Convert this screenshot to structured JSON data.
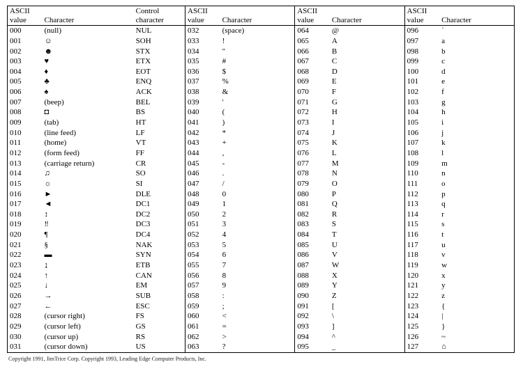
{
  "colors": {
    "background": "#ffffff",
    "text": "#000000",
    "border": "#000000"
  },
  "typography": {
    "body_font": "Times New Roman",
    "header_fontsize_pt": 8.5,
    "cell_fontsize_pt": 8.5,
    "copyright_fontsize_pt": 6
  },
  "headers": {
    "ascii_value_l1": "ASCII",
    "ascii_value_l2": "value",
    "character": "Character",
    "control_l1": "Control",
    "control_l2": "character"
  },
  "group1": [
    {
      "v": "000",
      "ch": "(null)",
      "cc": "NUL"
    },
    {
      "v": "001",
      "ch": "☺",
      "cc": "SOH"
    },
    {
      "v": "002",
      "ch": "☻",
      "cc": "STX"
    },
    {
      "v": "003",
      "ch": "♥",
      "cc": "ETX"
    },
    {
      "v": "004",
      "ch": "♦",
      "cc": "EOT"
    },
    {
      "v": "005",
      "ch": "♣",
      "cc": "ENQ"
    },
    {
      "v": "006",
      "ch": "♠",
      "cc": "ACK"
    },
    {
      "v": "007",
      "ch": "(beep)",
      "cc": "BEL"
    },
    {
      "v": "008",
      "ch": "◘",
      "cc": "BS"
    },
    {
      "v": "009",
      "ch": "(tab)",
      "cc": "HT"
    },
    {
      "v": "010",
      "ch": "(line feed)",
      "cc": "LF"
    },
    {
      "v": "011",
      "ch": "(home)",
      "cc": "VT"
    },
    {
      "v": "012",
      "ch": "(form feed)",
      "cc": "FF"
    },
    {
      "v": "013",
      "ch": "(carriage return)",
      "cc": "CR"
    },
    {
      "v": "014",
      "ch": "♫",
      "cc": "SO"
    },
    {
      "v": "015",
      "ch": "☼",
      "cc": "SI"
    },
    {
      "v": "016",
      "ch": "►",
      "cc": "DLE"
    },
    {
      "v": "017",
      "ch": "◄",
      "cc": "DC1"
    },
    {
      "v": "018",
      "ch": "↕",
      "cc": "DC2"
    },
    {
      "v": "019",
      "ch": "‼",
      "cc": "DC3"
    },
    {
      "v": "020",
      "ch": "¶",
      "cc": "DC4"
    },
    {
      "v": "021",
      "ch": "§",
      "cc": "NAK"
    },
    {
      "v": "022",
      "ch": "▬",
      "cc": "SYN"
    },
    {
      "v": "023",
      "ch": "↨",
      "cc": "ETB"
    },
    {
      "v": "024",
      "ch": "↑",
      "cc": "CAN"
    },
    {
      "v": "025",
      "ch": "↓",
      "cc": "EM"
    },
    {
      "v": "026",
      "ch": "→",
      "cc": "SUB"
    },
    {
      "v": "027",
      "ch": "←",
      "cc": "ESC"
    },
    {
      "v": "028",
      "ch": "(cursor right)",
      "cc": "FS"
    },
    {
      "v": "029",
      "ch": "(cursor left)",
      "cc": "GS"
    },
    {
      "v": "030",
      "ch": "(cursor up)",
      "cc": "RS"
    },
    {
      "v": "031",
      "ch": "(cursor down)",
      "cc": "US"
    }
  ],
  "group2": [
    {
      "v": "032",
      "ch": "(space)"
    },
    {
      "v": "033",
      "ch": "!"
    },
    {
      "v": "034",
      "ch": "\""
    },
    {
      "v": "035",
      "ch": "#"
    },
    {
      "v": "036",
      "ch": "$"
    },
    {
      "v": "037",
      "ch": "%"
    },
    {
      "v": "038",
      "ch": "&"
    },
    {
      "v": "039",
      "ch": "'"
    },
    {
      "v": "040",
      "ch": "("
    },
    {
      "v": "041",
      "ch": ")"
    },
    {
      "v": "042",
      "ch": "*"
    },
    {
      "v": "043",
      "ch": "+"
    },
    {
      "v": "044",
      "ch": ","
    },
    {
      "v": "045",
      "ch": "-"
    },
    {
      "v": "046",
      "ch": "."
    },
    {
      "v": "047",
      "ch": "/"
    },
    {
      "v": "048",
      "ch": "0"
    },
    {
      "v": "049",
      "ch": "1"
    },
    {
      "v": "050",
      "ch": "2"
    },
    {
      "v": "051",
      "ch": "3"
    },
    {
      "v": "052",
      "ch": "4"
    },
    {
      "v": "053",
      "ch": "5"
    },
    {
      "v": "054",
      "ch": "6"
    },
    {
      "v": "055",
      "ch": "7"
    },
    {
      "v": "056",
      "ch": "8"
    },
    {
      "v": "057",
      "ch": "9"
    },
    {
      "v": "058",
      "ch": ":"
    },
    {
      "v": "059",
      "ch": ";"
    },
    {
      "v": "060",
      "ch": "<"
    },
    {
      "v": "061",
      "ch": "="
    },
    {
      "v": "062",
      "ch": ">"
    },
    {
      "v": "063",
      "ch": "?"
    }
  ],
  "group3": [
    {
      "v": "064",
      "ch": "@"
    },
    {
      "v": "065",
      "ch": "A"
    },
    {
      "v": "066",
      "ch": "B"
    },
    {
      "v": "067",
      "ch": "C"
    },
    {
      "v": "068",
      "ch": "D"
    },
    {
      "v": "069",
      "ch": "E"
    },
    {
      "v": "070",
      "ch": "F"
    },
    {
      "v": "071",
      "ch": "G"
    },
    {
      "v": "072",
      "ch": "H"
    },
    {
      "v": "073",
      "ch": "I"
    },
    {
      "v": "074",
      "ch": "J"
    },
    {
      "v": "075",
      "ch": "K"
    },
    {
      "v": "076",
      "ch": "L"
    },
    {
      "v": "077",
      "ch": "M"
    },
    {
      "v": "078",
      "ch": "N"
    },
    {
      "v": "079",
      "ch": "O"
    },
    {
      "v": "080",
      "ch": "P"
    },
    {
      "v": "081",
      "ch": "Q"
    },
    {
      "v": "082",
      "ch": "R"
    },
    {
      "v": "083",
      "ch": "S"
    },
    {
      "v": "084",
      "ch": "T"
    },
    {
      "v": "085",
      "ch": "U"
    },
    {
      "v": "086",
      "ch": "V"
    },
    {
      "v": "087",
      "ch": "W"
    },
    {
      "v": "088",
      "ch": "X"
    },
    {
      "v": "089",
      "ch": "Y"
    },
    {
      "v": "090",
      "ch": "Z"
    },
    {
      "v": "091",
      "ch": "["
    },
    {
      "v": "092",
      "ch": "\\"
    },
    {
      "v": "093",
      "ch": "]"
    },
    {
      "v": "094",
      "ch": "^"
    },
    {
      "v": "095",
      "ch": "_"
    }
  ],
  "group4": [
    {
      "v": "096",
      "ch": "`"
    },
    {
      "v": "097",
      "ch": "a"
    },
    {
      "v": "098",
      "ch": "b"
    },
    {
      "v": "099",
      "ch": "c"
    },
    {
      "v": "100",
      "ch": "d"
    },
    {
      "v": "101",
      "ch": "e"
    },
    {
      "v": "102",
      "ch": "f"
    },
    {
      "v": "103",
      "ch": "g"
    },
    {
      "v": "104",
      "ch": "h"
    },
    {
      "v": "105",
      "ch": "i"
    },
    {
      "v": "106",
      "ch": "j"
    },
    {
      "v": "107",
      "ch": "k"
    },
    {
      "v": "108",
      "ch": "l"
    },
    {
      "v": "109",
      "ch": "m"
    },
    {
      "v": "110",
      "ch": "n"
    },
    {
      "v": "111",
      "ch": "o"
    },
    {
      "v": "112",
      "ch": "p"
    },
    {
      "v": "113",
      "ch": "q"
    },
    {
      "v": "114",
      "ch": "r"
    },
    {
      "v": "115",
      "ch": "s"
    },
    {
      "v": "116",
      "ch": "t"
    },
    {
      "v": "117",
      "ch": "u"
    },
    {
      "v": "118",
      "ch": "v"
    },
    {
      "v": "119",
      "ch": "w"
    },
    {
      "v": "120",
      "ch": "x"
    },
    {
      "v": "121",
      "ch": "y"
    },
    {
      "v": "122",
      "ch": "z"
    },
    {
      "v": "123",
      "ch": "{"
    },
    {
      "v": "124",
      "ch": "|"
    },
    {
      "v": "125",
      "ch": "}"
    },
    {
      "v": "126",
      "ch": "~"
    },
    {
      "v": "127",
      "ch": "⌂"
    }
  ],
  "copyright": "Copyright 1991, JimTrice Corp.   Copyright 1993, Leading Edge Computer Products, Inc."
}
